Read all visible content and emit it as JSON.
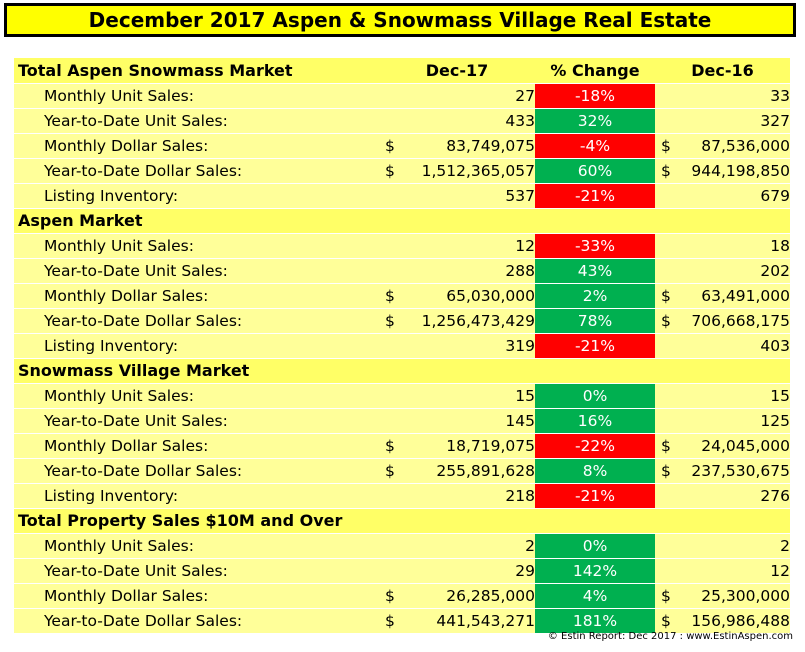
{
  "title": "December 2017 Aspen & Snowmass Village Real Estate",
  "columns": {
    "dec17": "Dec-17",
    "pct": "% Change",
    "dec16": "Dec-16"
  },
  "sections": [
    {
      "header": "Total Aspen Snowmass Market",
      "rows": [
        {
          "label": "Monthly Unit Sales:",
          "dec17": "27",
          "pct": "-18%",
          "dec16": "33",
          "dollar": false,
          "dir": "neg"
        },
        {
          "label": "Year-to-Date Unit Sales:",
          "dec17": "433",
          "pct": "32%",
          "dec16": "327",
          "dollar": false,
          "dir": "pos"
        },
        {
          "label": "Monthly Dollar Sales:",
          "dec17": "83,749,075",
          "pct": "-4%",
          "dec16": "87,536,000",
          "dollar": true,
          "dir": "neg"
        },
        {
          "label": "Year-to-Date Dollar Sales:",
          "dec17": "1,512,365,057",
          "pct": "60%",
          "dec16": "944,198,850",
          "dollar": true,
          "dir": "pos"
        },
        {
          "label": "Listing Inventory:",
          "dec17": "537",
          "pct": "-21%",
          "dec16": "679",
          "dollar": false,
          "dir": "neg"
        }
      ]
    },
    {
      "header": "Aspen Market",
      "rows": [
        {
          "label": "Monthly Unit Sales:",
          "dec17": "12",
          "pct": "-33%",
          "dec16": "18",
          "dollar": false,
          "dir": "neg"
        },
        {
          "label": "Year-to-Date Unit Sales:",
          "dec17": "288",
          "pct": "43%",
          "dec16": "202",
          "dollar": false,
          "dir": "pos"
        },
        {
          "label": "Monthly Dollar Sales:",
          "dec17": "65,030,000",
          "pct": "2%",
          "dec16": "63,491,000",
          "dollar": true,
          "dir": "pos"
        },
        {
          "label": "Year-to-Date Dollar Sales:",
          "dec17": "1,256,473,429",
          "pct": "78%",
          "dec16": "706,668,175",
          "dollar": true,
          "dir": "pos"
        },
        {
          "label": "Listing Inventory:",
          "dec17": "319",
          "pct": "-21%",
          "dec16": "403",
          "dollar": false,
          "dir": "neg"
        }
      ]
    },
    {
      "header": "Snowmass Village Market",
      "rows": [
        {
          "label": "Monthly Unit Sales:",
          "dec17": "15",
          "pct": "0%",
          "dec16": "15",
          "dollar": false,
          "dir": "pos"
        },
        {
          "label": "Year-to-Date Unit Sales:",
          "dec17": "145",
          "pct": "16%",
          "dec16": "125",
          "dollar": false,
          "dir": "pos"
        },
        {
          "label": "Monthly Dollar Sales:",
          "dec17": "18,719,075",
          "pct": "-22%",
          "dec16": "24,045,000",
          "dollar": true,
          "dir": "neg"
        },
        {
          "label": "Year-to-Date Dollar Sales:",
          "dec17": "255,891,628",
          "pct": "8%",
          "dec16": "237,530,675",
          "dollar": true,
          "dir": "pos"
        },
        {
          "label": "Listing Inventory:",
          "dec17": "218",
          "pct": "-21%",
          "dec16": "276",
          "dollar": false,
          "dir": "neg"
        }
      ]
    },
    {
      "header": "Total Property Sales $10M and Over",
      "rows": [
        {
          "label": "Monthly Unit Sales:",
          "dec17": "2",
          "pct": "0%",
          "dec16": "2",
          "dollar": false,
          "dir": "pos"
        },
        {
          "label": "Year-to-Date Unit Sales:",
          "dec17": "29",
          "pct": "142%",
          "dec16": "12",
          "dollar": false,
          "dir": "pos"
        },
        {
          "label": "Monthly Dollar Sales:",
          "dec17": "26,285,000",
          "pct": "4%",
          "dec16": "25,300,000",
          "dollar": true,
          "dir": "pos"
        },
        {
          "label": "Year-to-Date Dollar Sales:",
          "dec17": "441,543,271",
          "pct": "181%",
          "dec16": "156,986,488",
          "dollar": true,
          "dir": "pos"
        }
      ]
    }
  ],
  "currency_symbol": "$",
  "footer": "© Estin Report: Dec 2017 : www.EstinAspen.com",
  "colors": {
    "title_bg": "#ffff00",
    "header_bg": "#ffff66",
    "row_bg": "#ffff99",
    "negative": "#ff0000",
    "positive": "#00b050"
  }
}
